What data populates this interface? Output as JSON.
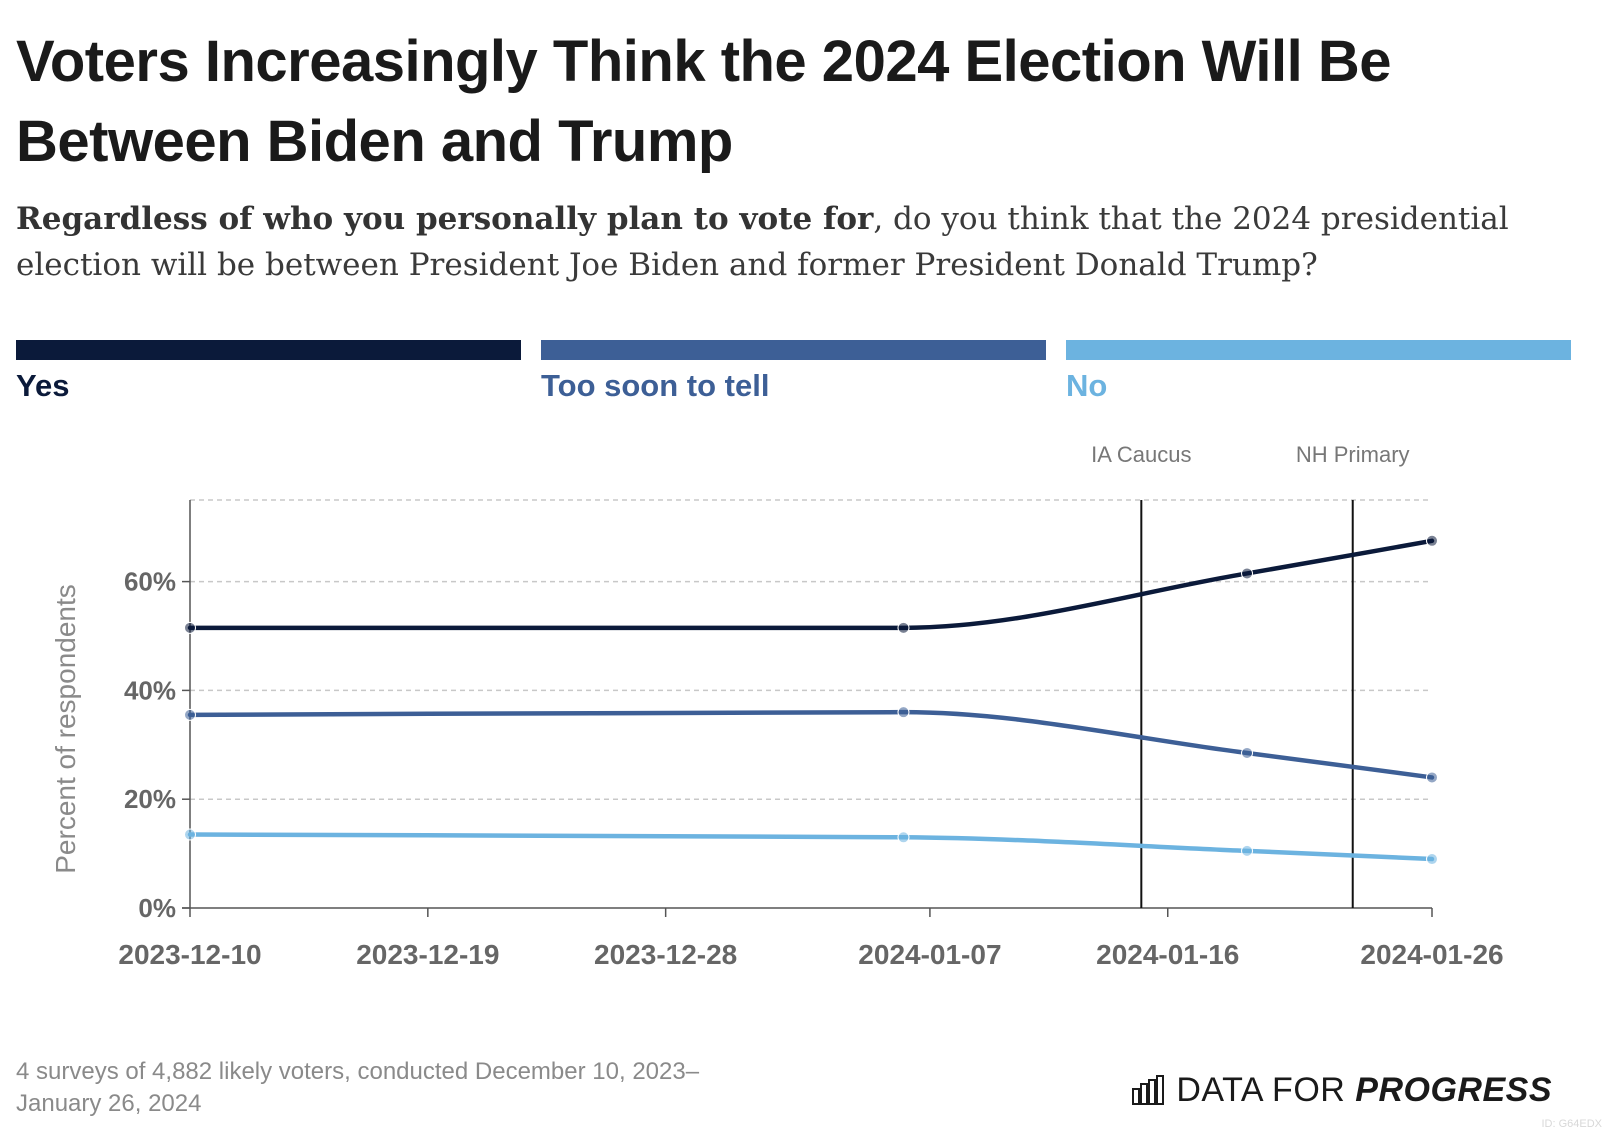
{
  "title": "Voters Increasingly Think the 2024 Election Will Be Between Biden and Trump",
  "subtitle": {
    "bold": "Regardless of who you personally plan to vote for",
    "rest": ", do you think that the 2024 presidential election will be between President Joe Biden and former President Donald Trump?"
  },
  "legend": [
    {
      "label": "Yes",
      "color": "#0b1a3a"
    },
    {
      "label": "Too soon to tell",
      "color": "#3d5f96"
    },
    {
      "label": "No",
      "color": "#6cb3e0"
    }
  ],
  "footnote": "4 surveys of 4,882 likely voters, conducted December 10, 2023–January 26, 2024",
  "logo": {
    "prefix": "DATA FOR ",
    "strong": "PROGRESS"
  },
  "id_label": "ID: G64EDX",
  "chart_data": {
    "type": "line",
    "ylabel": "Percent of respondents",
    "ylim": [
      0,
      75
    ],
    "yticks": [
      0,
      20,
      40,
      60
    ],
    "ytick_labels": [
      "0%",
      "20%",
      "40%",
      "60%"
    ],
    "grid": true,
    "xlim": [
      "2023-12-10",
      "2024-01-26"
    ],
    "xticks": [
      "2023-12-10",
      "2023-12-19",
      "2023-12-28",
      "2024-01-07",
      "2024-01-16",
      "2024-01-26"
    ],
    "x": [
      "2023-12-10",
      "2024-01-06",
      "2024-01-19",
      "2024-01-26"
    ],
    "series": [
      {
        "name": "Yes",
        "color": "#0b1a3a",
        "values": [
          51.5,
          51.5,
          61.5,
          67.5
        ]
      },
      {
        "name": "Too soon to tell",
        "color": "#3d5f96",
        "values": [
          35.5,
          36,
          28.5,
          24
        ]
      },
      {
        "name": "No",
        "color": "#6cb3e0",
        "values": [
          13.5,
          13,
          10.5,
          9
        ]
      }
    ],
    "annotations": [
      {
        "date": "2024-01-15",
        "label": "IA Caucus"
      },
      {
        "date": "2024-01-23",
        "label": "NH Primary"
      }
    ]
  }
}
